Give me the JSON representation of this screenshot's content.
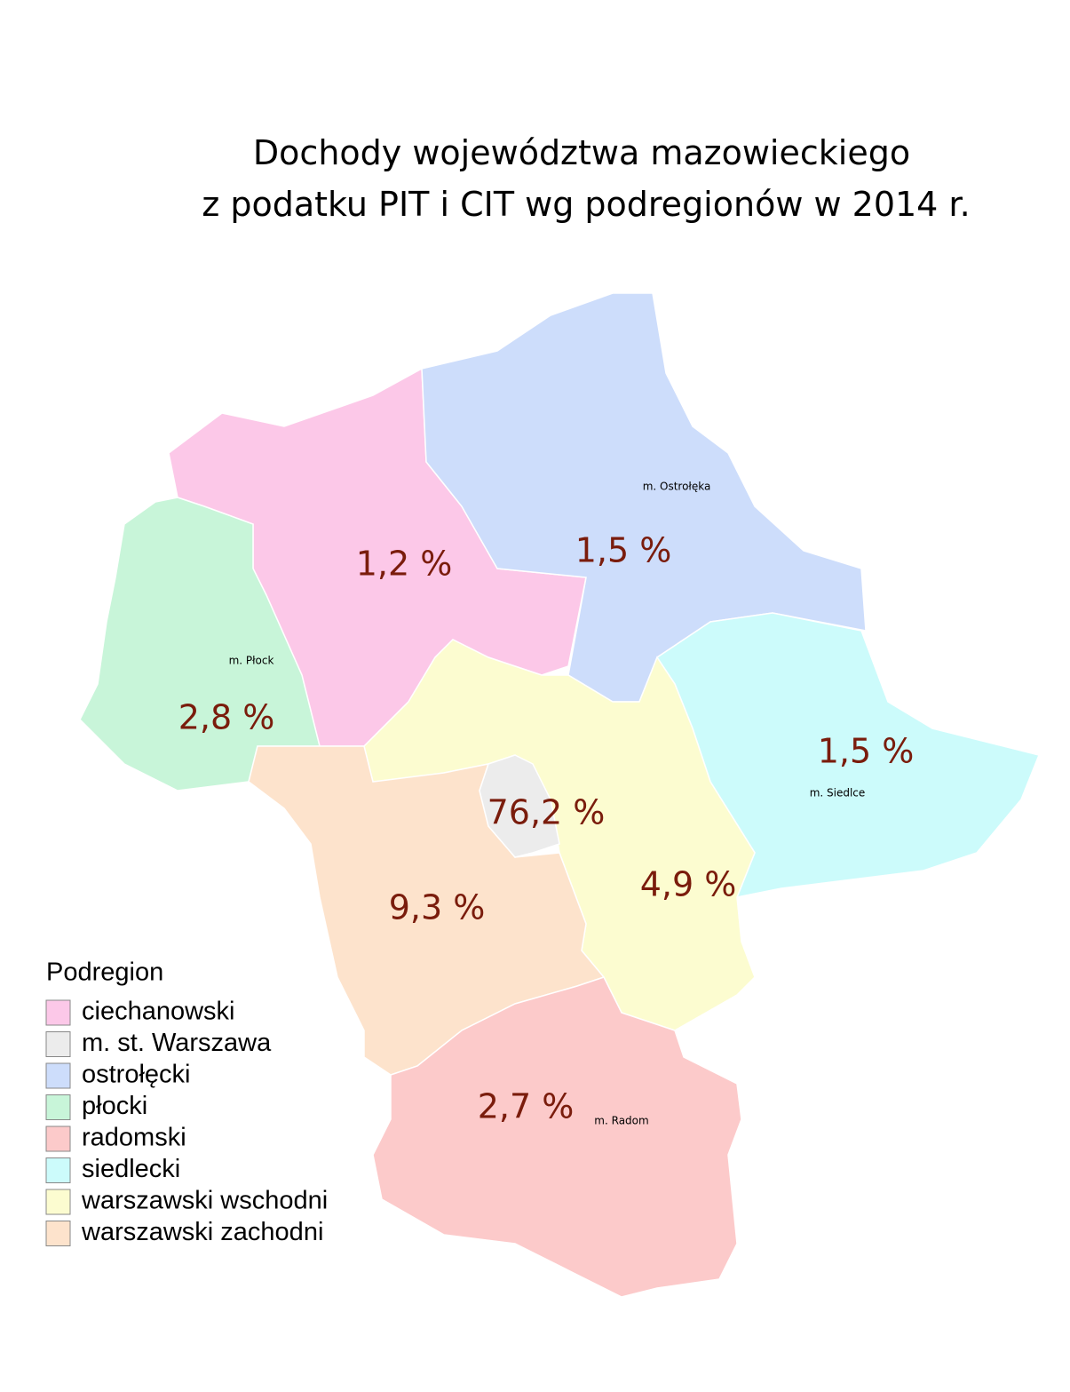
{
  "title": {
    "line1": "Dochody województwa mazowieckiego",
    "line2": "z podatku PIT i CIT wg podregionów w 2014 r."
  },
  "regions": [
    {
      "name": "ciechanowski",
      "color": "#fcc8e8",
      "share": "1,2 %"
    },
    {
      "name": "m. st. Warszawa",
      "color": "#ececec",
      "share": "76,2 %"
    },
    {
      "name": "ostrołęcki",
      "color": "#cdddfb",
      "share": "1,5 %"
    },
    {
      "name": "płocki",
      "color": "#c8f5d9",
      "share": "2,8 %"
    },
    {
      "name": "radomski",
      "color": "#fccaca",
      "share": "2,7 %"
    },
    {
      "name": "siedlecki",
      "color": "#ccfbfb",
      "share": "1,5 %"
    },
    {
      "name": "warszawski wschodni",
      "color": "#fcfcd0",
      "share": "4,9 %"
    },
    {
      "name": "warszawski zachodni",
      "color": "#fde3cc",
      "share": "9,3 %"
    }
  ],
  "cities": [
    "m. Ostrołęka",
    "m. Płock",
    "m. Siedlce",
    "m. Radom"
  ],
  "legend": {
    "title": "Podregion"
  }
}
